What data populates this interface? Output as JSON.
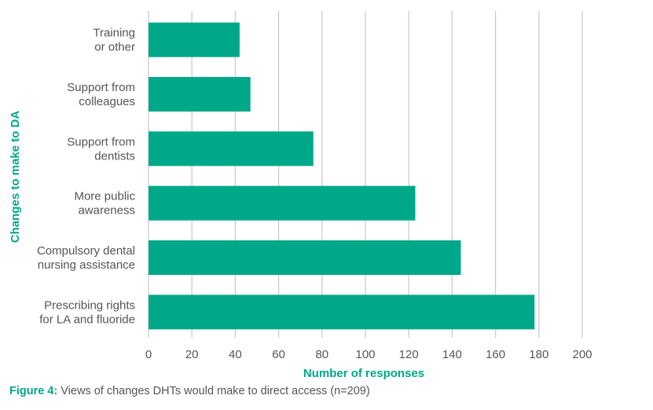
{
  "colors": {
    "bar": "#00a88a",
    "accent": "#00a88a",
    "grid": "#c8c8c8",
    "text": "#555555"
  },
  "caption": {
    "label": "Figure 4:",
    "text": " Views of changes DHTs would make to direct access (n=209)"
  },
  "chart_data": {
    "type": "bar",
    "orientation": "horizontal",
    "categories": [
      [
        "Training",
        "or other"
      ],
      [
        "Support from",
        "colleagues"
      ],
      [
        "Support from",
        "dentists"
      ],
      [
        "More public",
        "awareness"
      ],
      [
        "Compulsory dental",
        "nursing assistance"
      ],
      [
        "Prescribing rights",
        "for LA and fluoride"
      ]
    ],
    "values": [
      42,
      47,
      76,
      123,
      144,
      178
    ],
    "xlabel": "Number of responses",
    "ylabel": "Changes to make to DA",
    "xlim": [
      0,
      200
    ],
    "xticks": [
      0,
      20,
      40,
      60,
      80,
      100,
      120,
      140,
      160,
      180,
      200
    ],
    "grid": true
  }
}
